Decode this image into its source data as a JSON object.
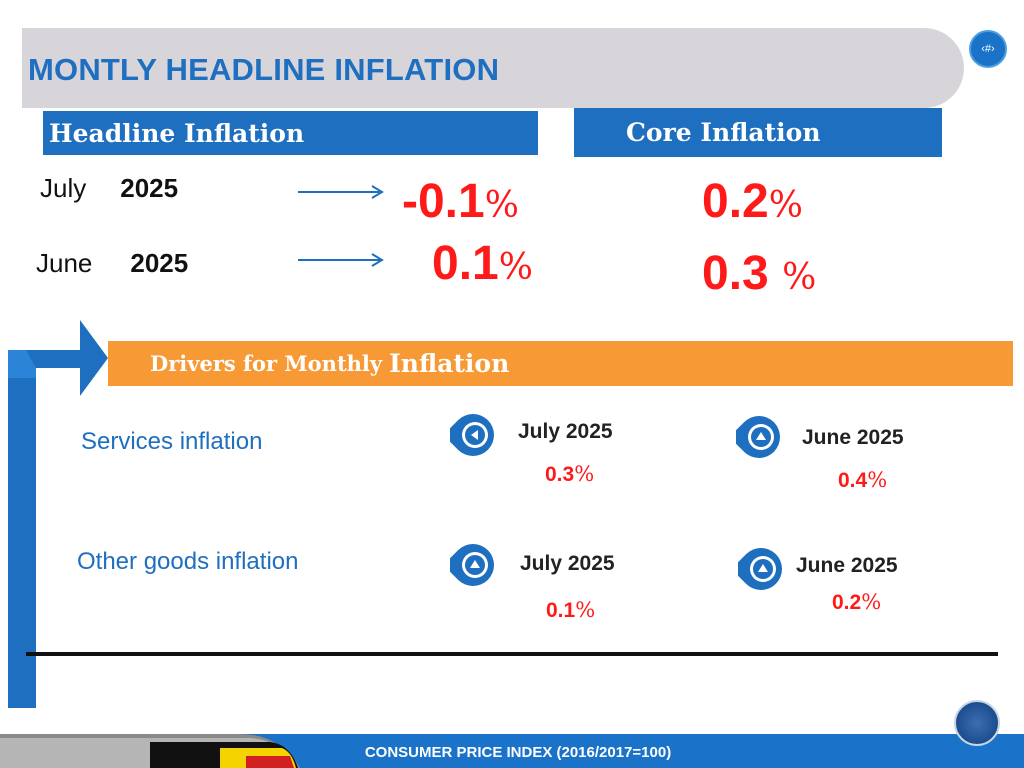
{
  "title": "MONTLY HEADLINE INFLATION",
  "page_badge": "‹#›",
  "headline_header": "Headline Inflation",
  "core_header": "Core Inflation",
  "rows": [
    {
      "month": "July",
      "year": "2025",
      "headline": "-0.1",
      "core": "0.2"
    },
    {
      "month": "June",
      "year": "2025",
      "headline": "0.1",
      "core": "0.3 "
    }
  ],
  "percent_sign": "%",
  "drivers_header": {
    "part1": "Drivers for Monthly",
    "part2": "Inflation"
  },
  "drivers": [
    {
      "label": "Services inflation",
      "july_label": "July 2025",
      "july_value": "0.3",
      "june_label": "June 2025",
      "june_value": "0.4"
    },
    {
      "label": "Other goods inflation",
      "july_label": "July 2025",
      "july_value": "0.1",
      "june_label": "June 2025",
      "june_value": "0.2"
    }
  ],
  "footer": "CONSUMER PRICE INDEX (2016/2017=100)",
  "colors": {
    "brand_blue": "#1f6fc0",
    "orange": "#f79a36",
    "value_red": "#ff1a1a",
    "title_band": "#d7d4da"
  },
  "icons": {
    "pin_left": "arrow-left-pin-icon",
    "pin_up": "arrow-up-pin-icon",
    "arrow_right": "arrow-right-icon",
    "logo": "ubos-logo-icon"
  }
}
